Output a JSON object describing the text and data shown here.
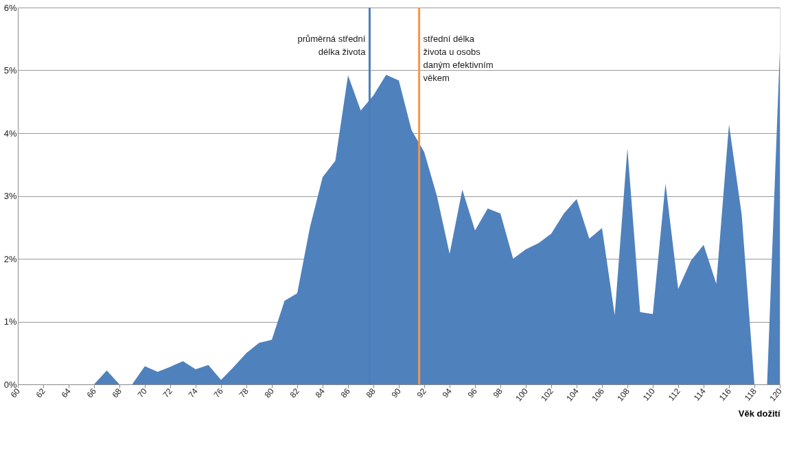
{
  "chart_data": {
    "type": "area",
    "xlabel": "Věk dožití",
    "x": [
      60,
      61,
      62,
      63,
      64,
      65,
      66,
      67,
      68,
      69,
      70,
      71,
      72,
      73,
      74,
      75,
      76,
      77,
      78,
      79,
      80,
      81,
      82,
      83,
      84,
      85,
      86,
      87,
      88,
      89,
      90,
      91,
      92,
      93,
      94,
      95,
      96,
      97,
      98,
      99,
      100,
      101,
      102,
      103,
      104,
      105,
      106,
      107,
      108,
      109,
      110,
      111,
      112,
      113,
      114,
      115,
      116,
      117,
      118,
      119,
      120
    ],
    "series": [
      {
        "color": "#4f81bd",
        "values": [
          0,
          0,
          0,
          0,
          0,
          0,
          0,
          0.22,
          0,
          0,
          0.29,
          0.2,
          0.28,
          0.37,
          0.24,
          0.31,
          0.07,
          0.28,
          0.5,
          0.66,
          0.71,
          1.33,
          1.45,
          2.5,
          3.3,
          3.56,
          4.92,
          4.36,
          4.6,
          4.93,
          4.84,
          4.05,
          3.7,
          3.0,
          2.08,
          3.1,
          2.45,
          2.8,
          2.72,
          2.0,
          2.15,
          2.25,
          2.4,
          2.72,
          2.95,
          2.32,
          2.49,
          1.1,
          3.76,
          1.15,
          1.12,
          3.2,
          1.52,
          1.97,
          2.22,
          1.6,
          4.14,
          2.7,
          0,
          0,
          5.3
        ]
      }
    ],
    "xlim": [
      60,
      120
    ],
    "xticks": [
      60,
      62,
      64,
      66,
      68,
      70,
      72,
      74,
      76,
      78,
      80,
      82,
      84,
      86,
      88,
      90,
      92,
      94,
      96,
      98,
      100,
      102,
      104,
      106,
      108,
      110,
      112,
      114,
      116,
      118,
      120
    ],
    "ylim": [
      0,
      6
    ],
    "yticks": [
      {
        "value": 0,
        "label": "0%"
      },
      {
        "value": 1,
        "label": "1%"
      },
      {
        "value": 2,
        "label": "2%"
      },
      {
        "value": 3,
        "label": "3%"
      },
      {
        "value": 4,
        "label": "4%"
      },
      {
        "value": 5,
        "label": "5%"
      },
      {
        "value": 6,
        "label": "6%"
      }
    ],
    "grid": "y",
    "ref_lines": [
      {
        "axis": "x",
        "value": 87.7,
        "label": "průměrná střední délka života",
        "color": "#4a7ebb"
      },
      {
        "axis": "x",
        "value": 91.6,
        "label": "střední délka života u osobs daným efektivním věkem",
        "color": "#f79646"
      }
    ]
  }
}
